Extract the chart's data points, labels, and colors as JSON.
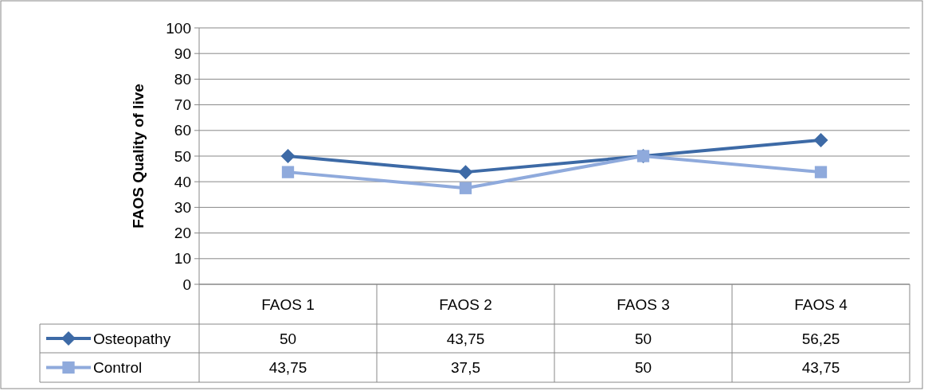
{
  "chart_data": {
    "type": "line",
    "ylabel": "FAOS Quality of live",
    "categories": [
      "FAOS 1",
      "FAOS 2",
      "FAOS 3",
      "FAOS 4"
    ],
    "series": [
      {
        "name": "Osteopathy",
        "color": "#3d6aa6",
        "marker": "diamond",
        "values": [
          50,
          43.75,
          50,
          56.25
        ],
        "value_labels": [
          "50",
          "43,75",
          "50",
          "56,25"
        ]
      },
      {
        "name": "Control",
        "color": "#8faadc",
        "marker": "square",
        "values": [
          43.75,
          37.5,
          50,
          43.75
        ],
        "value_labels": [
          "43,75",
          "37,5",
          "50",
          "43,75"
        ]
      }
    ],
    "ylim": [
      0,
      100
    ],
    "yticks": [
      0,
      10,
      20,
      30,
      40,
      50,
      60,
      70,
      80,
      90,
      100
    ],
    "grid": "y",
    "legend": "bottom",
    "line_style": "solid"
  }
}
